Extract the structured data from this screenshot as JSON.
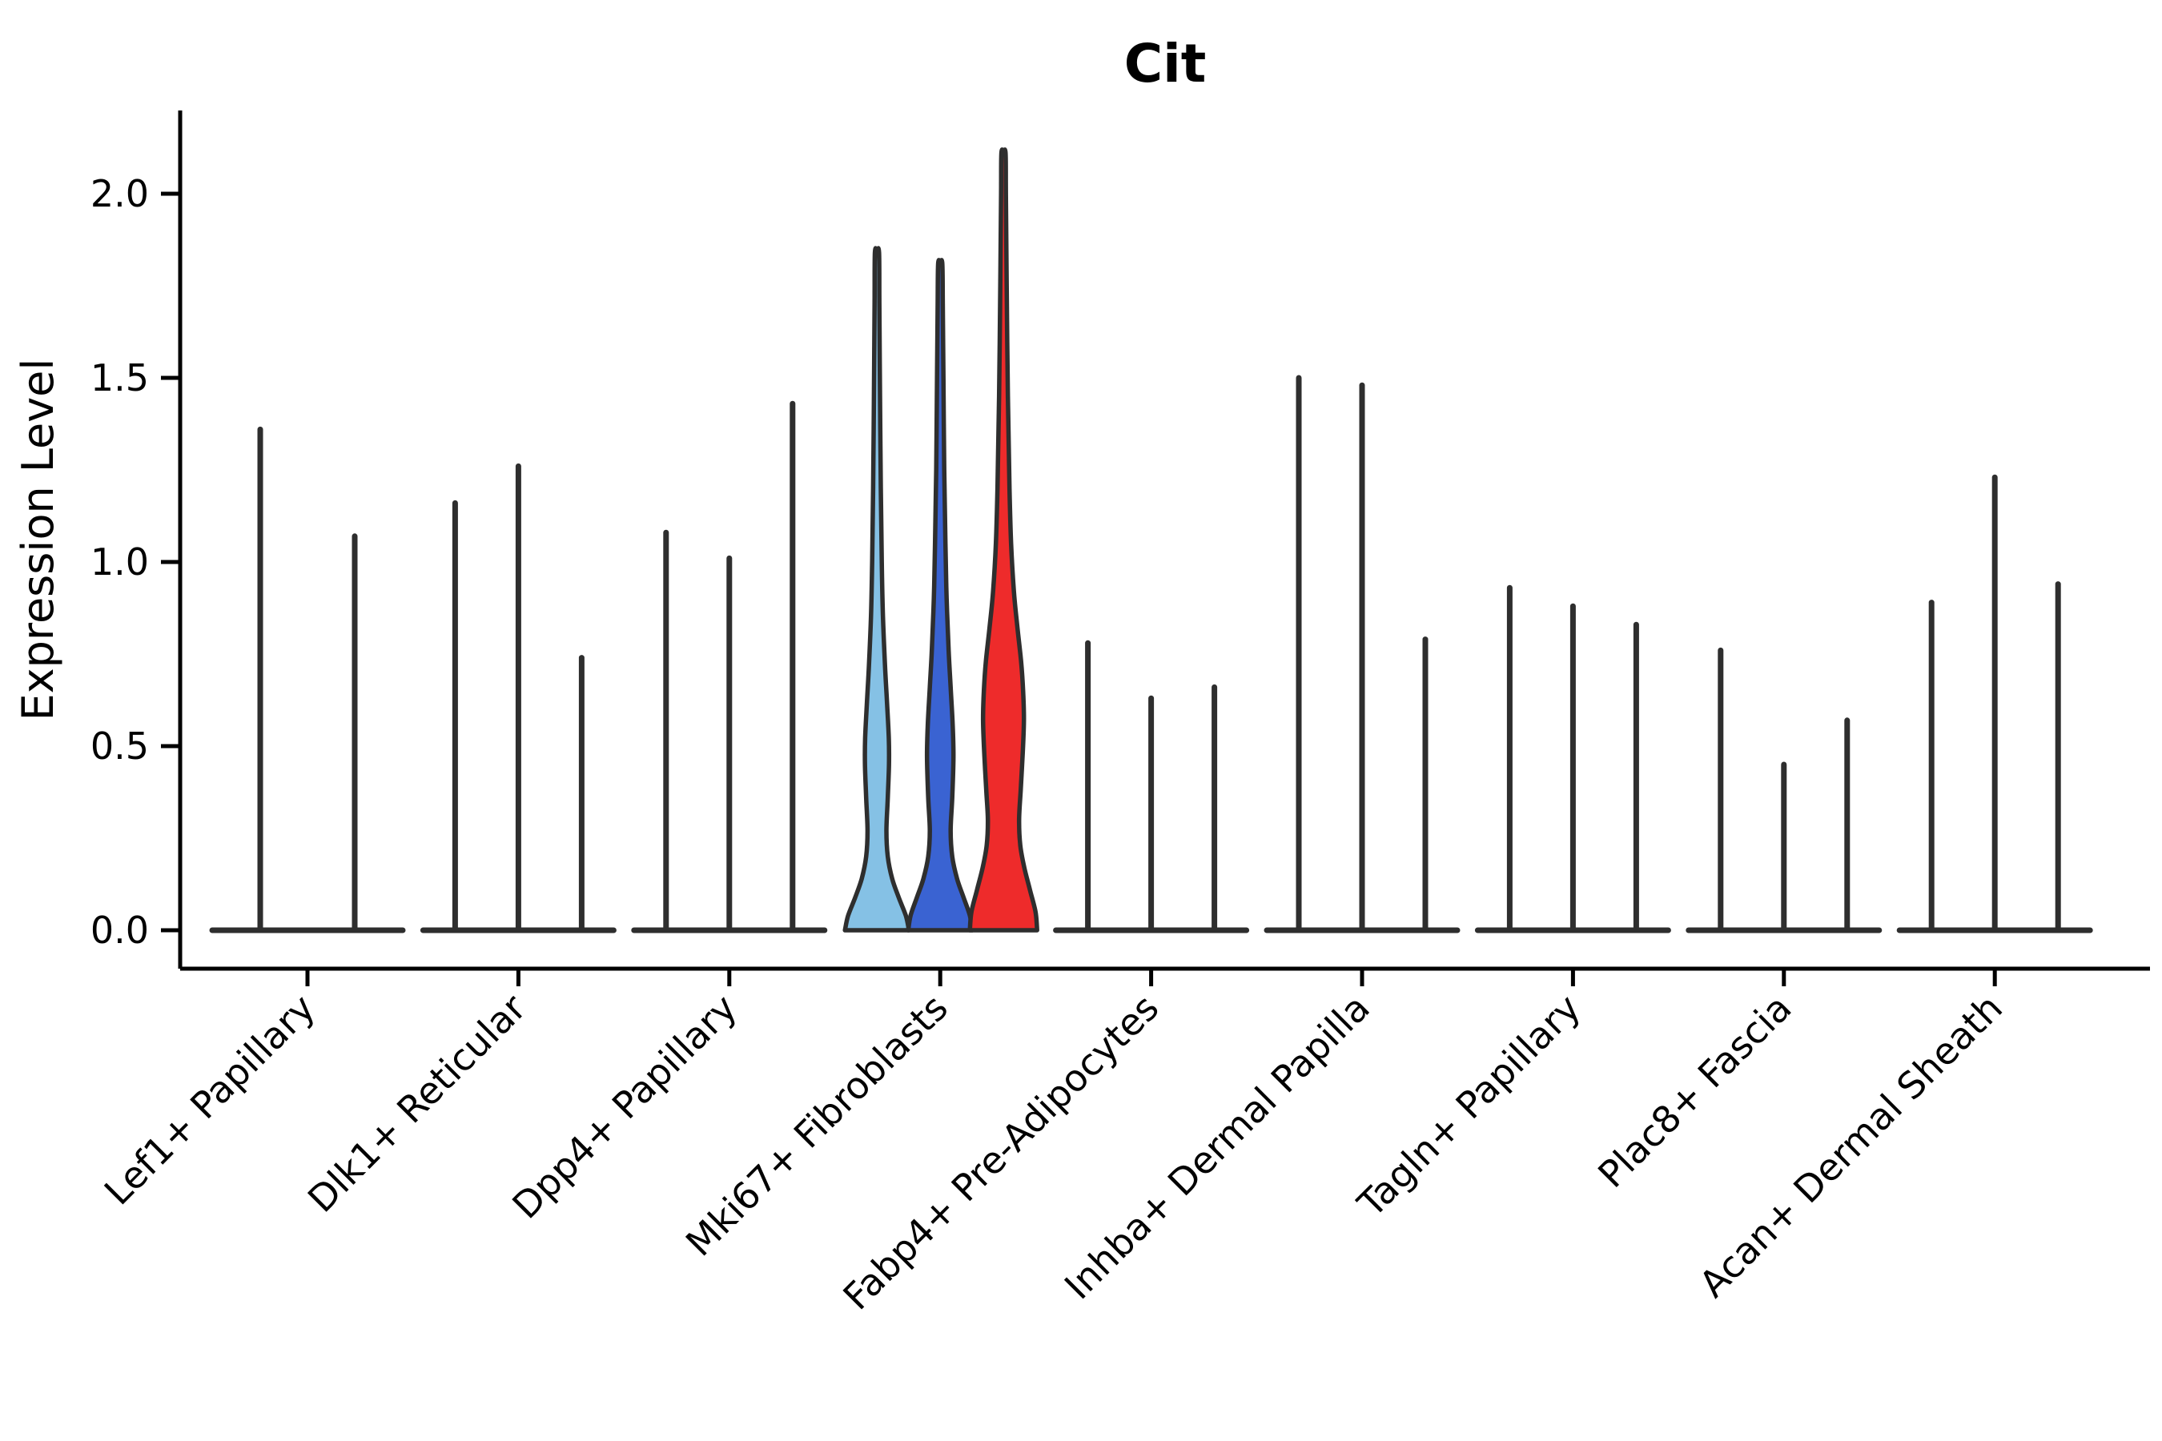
{
  "chart_data": {
    "type": "violin",
    "title": "Cit",
    "xlabel": "",
    "ylabel": "Expression Level",
    "ylim": [
      0,
      2.23
    ],
    "yticks": [
      "0.0",
      "0.5",
      "1.0",
      "1.5",
      "2.0"
    ],
    "ytick_values": [
      0,
      0.5,
      1.0,
      1.5,
      2.0
    ],
    "grid": false,
    "legend_position": "none",
    "categories": [
      "Lef1+ Papillary",
      "Dlk1+ Reticular",
      "Dpp4+ Papillary",
      "Mki67+ Fibroblasts",
      "Fabp4+ Pre-Adipocytes",
      "Inhba+ Dermal Papilla",
      "Tagln+ Papillary",
      "Plac8+ Fascia",
      "Acan+ Dermal Sheath"
    ],
    "line_color": "#2e2e2e",
    "axis_color": "#000000",
    "groups": [
      {
        "category": "Lef1+ Papillary",
        "violins": [
          {
            "max": 1.36
          },
          {
            "max": 1.07
          }
        ]
      },
      {
        "category": "Dlk1+ Reticular",
        "violins": [
          {
            "max": 1.16
          },
          {
            "max": 1.26
          },
          {
            "max": 0.74
          }
        ]
      },
      {
        "category": "Dpp4+ Papillary",
        "violins": [
          {
            "max": 1.08
          },
          {
            "max": 1.01
          },
          {
            "max": 1.43
          }
        ]
      },
      {
        "category": "Mki67+ Fibroblasts",
        "violins": [
          {
            "max": 1.84,
            "color": "#85C1E5",
            "profile": [
              [
                0,
                40
              ],
              [
                0.04,
                36
              ],
              [
                0.09,
                27
              ],
              [
                0.14,
                19
              ],
              [
                0.2,
                13.5
              ],
              [
                0.27,
                11.8
              ],
              [
                0.36,
                13.5
              ],
              [
                0.45,
                15
              ],
              [
                0.52,
                14.8
              ],
              [
                0.62,
                12.5
              ],
              [
                0.72,
                10
              ],
              [
                0.85,
                7.5
              ],
              [
                1.0,
                6
              ],
              [
                1.2,
                4.8
              ],
              [
                1.45,
                3.8
              ],
              [
                1.7,
                3
              ],
              [
                1.84,
                2.6
              ]
            ]
          },
          {
            "max": 1.81,
            "color": "#3A63D2",
            "profile": [
              [
                0,
                40
              ],
              [
                0.04,
                37
              ],
              [
                0.09,
                29
              ],
              [
                0.14,
                21
              ],
              [
                0.2,
                15
              ],
              [
                0.27,
                13
              ],
              [
                0.36,
                15
              ],
              [
                0.47,
                16.5
              ],
              [
                0.56,
                15.5
              ],
              [
                0.66,
                13
              ],
              [
                0.76,
                10.5
              ],
              [
                0.9,
                8
              ],
              [
                1.05,
                6.5
              ],
              [
                1.25,
                5
              ],
              [
                1.5,
                4
              ],
              [
                1.7,
                3.2
              ],
              [
                1.81,
                2.6
              ]
            ]
          },
          {
            "max": 2.11,
            "color": "#EE2B2B",
            "profile": [
              [
                0,
                42
              ],
              [
                0.05,
                40
              ],
              [
                0.11,
                33
              ],
              [
                0.17,
                26
              ],
              [
                0.23,
                21
              ],
              [
                0.3,
                19.5
              ],
              [
                0.38,
                21.5
              ],
              [
                0.48,
                24
              ],
              [
                0.57,
                25.5
              ],
              [
                0.65,
                24.5
              ],
              [
                0.73,
                22
              ],
              [
                0.82,
                17.5
              ],
              [
                0.92,
                13
              ],
              [
                1.05,
                9.5
              ],
              [
                1.2,
                7.5
              ],
              [
                1.45,
                5.5
              ],
              [
                1.75,
                4
              ],
              [
                2.0,
                3
              ],
              [
                2.11,
                2.6
              ]
            ]
          }
        ]
      },
      {
        "category": "Fabp4+ Pre-Adipocytes",
        "violins": [
          {
            "max": 0.78
          },
          {
            "max": 0.63
          },
          {
            "max": 0.66
          }
        ]
      },
      {
        "category": "Inhba+ Dermal Papilla",
        "violins": [
          {
            "max": 1.5
          },
          {
            "max": 1.48
          },
          {
            "max": 0.79
          }
        ]
      },
      {
        "category": "Tagln+ Papillary",
        "violins": [
          {
            "max": 0.93
          },
          {
            "max": 0.88
          },
          {
            "max": 0.83
          }
        ]
      },
      {
        "category": "Plac8+ Fascia",
        "violins": [
          {
            "max": 0.76
          },
          {
            "max": 0.45
          },
          {
            "max": 0.57
          }
        ]
      },
      {
        "category": "Acan+ Dermal Sheath",
        "violins": [
          {
            "max": 0.89
          },
          {
            "max": 1.23
          },
          {
            "max": 0.94
          }
        ]
      }
    ]
  }
}
